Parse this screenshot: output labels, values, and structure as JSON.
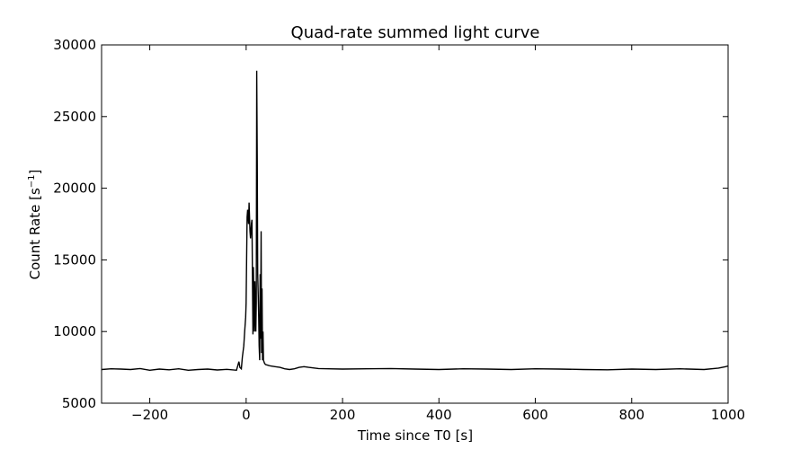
{
  "chart_data": {
    "type": "line",
    "title": "Quad-rate summed light curve",
    "xlabel": "Time since T0 [s]",
    "ylabel_main": "Count Rate [s",
    "ylabel_sup": "−1",
    "ylabel_end": "]",
    "xlim": [
      -300,
      1000
    ],
    "ylim": [
      5000,
      30000
    ],
    "xticks": [
      -200,
      0,
      200,
      400,
      600,
      800,
      1000
    ],
    "xtick_labels": [
      "−200",
      "0",
      "200",
      "400",
      "600",
      "800",
      "1000"
    ],
    "yticks": [
      5000,
      10000,
      15000,
      20000,
      25000,
      30000
    ],
    "ytick_labels": [
      "5000",
      "10000",
      "15000",
      "20000",
      "25000",
      "30000"
    ],
    "grid": false,
    "series": [
      {
        "color": "#000000",
        "x": [
          -300,
          -280,
          -260,
          -240,
          -220,
          -200,
          -180,
          -160,
          -140,
          -120,
          -100,
          -80,
          -60,
          -40,
          -20,
          -15,
          -13,
          -10,
          -8,
          -5,
          -3,
          -1,
          0,
          2,
          3,
          5,
          6,
          8,
          9,
          11,
          12,
          14,
          15,
          17,
          18,
          20,
          21,
          22,
          23,
          24,
          25,
          26,
          27,
          28,
          29,
          30,
          31,
          32,
          33,
          34,
          35,
          36,
          38,
          40,
          45,
          50,
          60,
          70,
          80,
          90,
          100,
          110,
          120,
          130,
          150,
          170,
          200,
          250,
          300,
          350,
          400,
          450,
          500,
          550,
          600,
          650,
          700,
          750,
          800,
          850,
          900,
          950,
          980,
          995,
          1000
        ],
        "y": [
          7350,
          7400,
          7380,
          7350,
          7420,
          7300,
          7380,
          7330,
          7400,
          7300,
          7350,
          7380,
          7320,
          7360,
          7300,
          7900,
          7500,
          7400,
          8200,
          9000,
          10000,
          11000,
          12000,
          18000,
          18500,
          17500,
          19000,
          17000,
          16500,
          17500,
          17800,
          9800,
          14500,
          10000,
          13500,
          10000,
          12000,
          28200,
          22000,
          14000,
          12500,
          11000,
          9000,
          8000,
          14000,
          9500,
          17000,
          8500,
          13000,
          8000,
          10000,
          8000,
          7800,
          7700,
          7650,
          7600,
          7550,
          7500,
          7400,
          7350,
          7400,
          7500,
          7550,
          7500,
          7420,
          7400,
          7380,
          7400,
          7420,
          7380,
          7350,
          7400,
          7380,
          7350,
          7400,
          7380,
          7350,
          7330,
          7380,
          7350,
          7400,
          7350,
          7450,
          7550,
          7600
        ]
      }
    ]
  }
}
